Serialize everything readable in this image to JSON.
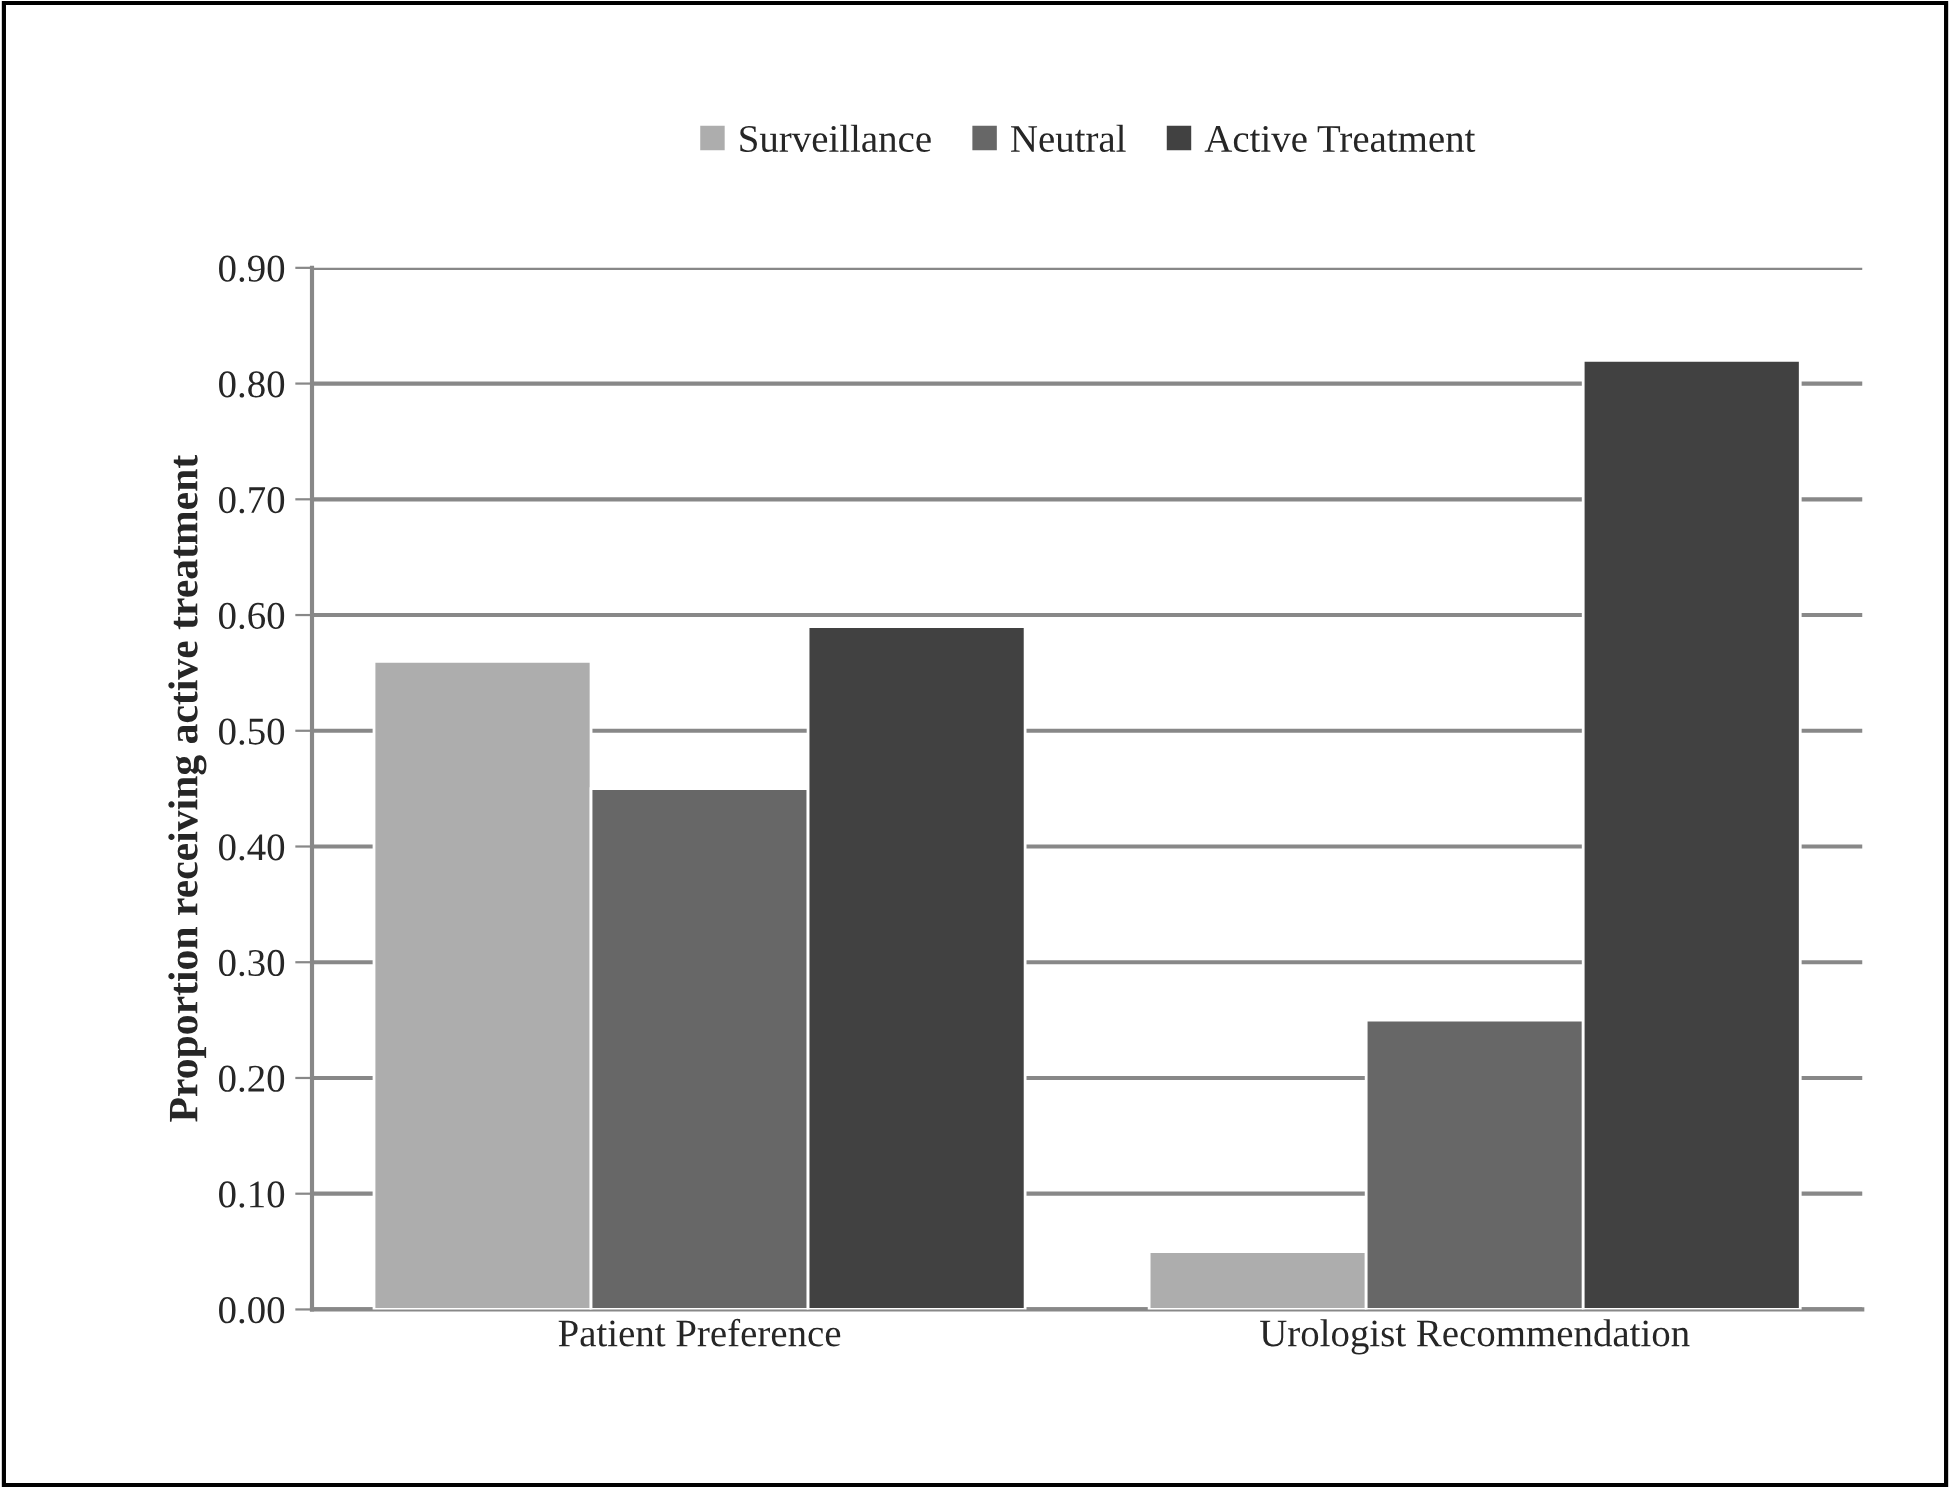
{
  "chart_data": {
    "type": "bar",
    "ylabel": "Proportion receiving active treatment",
    "categories": [
      "Patient Preference",
      "Urologist Recommendation"
    ],
    "series": [
      {
        "name": "Surveillance",
        "color": "#adadad",
        "values": [
          0.56,
          0.05
        ]
      },
      {
        "name": "Neutral",
        "color": "#676767",
        "values": [
          0.45,
          0.25
        ]
      },
      {
        "name": "Active Treatment",
        "color": "#414141",
        "values": [
          0.59,
          0.82
        ]
      }
    ],
    "ylim": [
      0,
      0.9
    ],
    "yticks": [
      {
        "value": 0,
        "label": "0.00"
      },
      {
        "value": 0.1,
        "label": "0.10"
      },
      {
        "value": 0.2,
        "label": "0.20"
      },
      {
        "value": 0.3,
        "label": "0.30"
      },
      {
        "value": 0.4,
        "label": "0.40"
      },
      {
        "value": 0.5,
        "label": "0.50"
      },
      {
        "value": 0.6,
        "label": "0.60"
      },
      {
        "value": 0.7,
        "label": "0.70"
      },
      {
        "value": 0.8,
        "label": "0.80"
      },
      {
        "value": 0.9,
        "label": "0.90"
      }
    ],
    "grid": "y",
    "legend": "top"
  }
}
